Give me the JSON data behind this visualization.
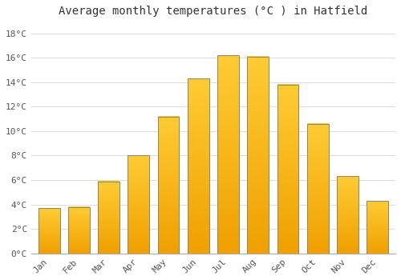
{
  "title": "Average monthly temperatures (°C ) in Hatfield",
  "months": [
    "Jan",
    "Feb",
    "Mar",
    "Apr",
    "May",
    "Jun",
    "Jul",
    "Aug",
    "Sep",
    "Oct",
    "Nov",
    "Dec"
  ],
  "values": [
    3.7,
    3.8,
    5.9,
    8.0,
    11.2,
    14.3,
    16.2,
    16.1,
    13.8,
    10.6,
    6.3,
    4.3
  ],
  "bar_color_top": "#FFCC33",
  "bar_color_bottom": "#F0A000",
  "bar_edge_color": "#888866",
  "yticks": [
    0,
    2,
    4,
    6,
    8,
    10,
    12,
    14,
    16,
    18
  ],
  "ytick_labels": [
    "0°C",
    "2°C",
    "4°C",
    "6°C",
    "8°C",
    "10°C",
    "12°C",
    "14°C",
    "16°C",
    "18°C"
  ],
  "ylim": [
    0,
    19.0
  ],
  "background_color": "#FFFFFF",
  "grid_color": "#DDDDDD",
  "title_fontsize": 10,
  "tick_fontsize": 8,
  "font_family": "monospace"
}
